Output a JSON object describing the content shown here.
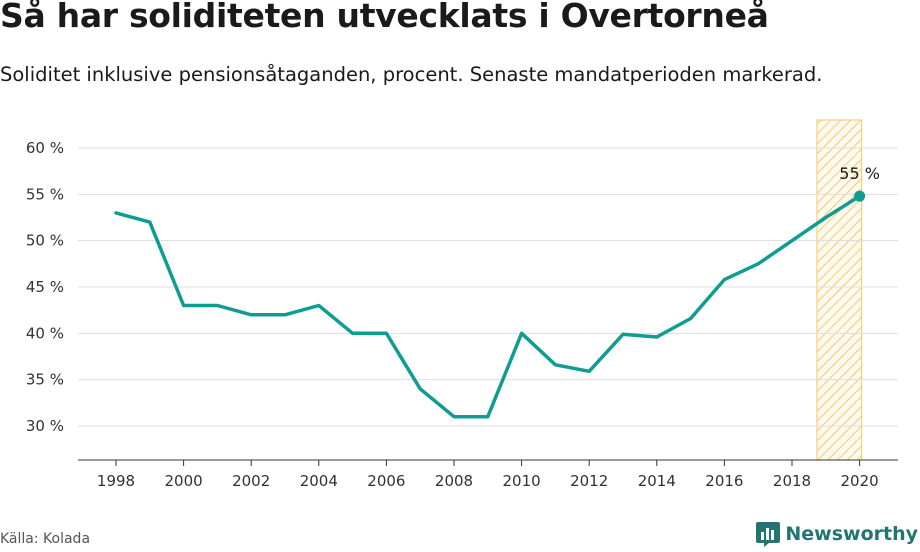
{
  "title": "Så har soliditeten utvecklats i Overtorneå",
  "subtitle": "Soliditet inklusive pensionsåtaganden, procent. Senaste mandatperioden markerad.",
  "source": "Källa: Kolada",
  "brand": "Newsworthy",
  "colors": {
    "line": "#0f9c91",
    "highlight": "#f7c96a",
    "grid": "#dddddd",
    "brand": "#21766f"
  },
  "chart_data": {
    "type": "line",
    "x": [
      1998,
      1999,
      2000,
      2001,
      2002,
      2003,
      2004,
      2005,
      2006,
      2007,
      2008,
      2009,
      2010,
      2011,
      2012,
      2013,
      2014,
      2015,
      2016,
      2017,
      2018,
      2019,
      2020
    ],
    "values": [
      53,
      52,
      43,
      43,
      42,
      42,
      43,
      40,
      40,
      34,
      31,
      31,
      40,
      36.6,
      35.9,
      39.9,
      39.6,
      41.6,
      45.8,
      47.5,
      50,
      52.5,
      54.8
    ],
    "xticks": [
      1998,
      2000,
      2002,
      2004,
      2006,
      2008,
      2010,
      2012,
      2014,
      2016,
      2018,
      2020
    ],
    "xtick_labels": [
      "1998",
      "2000",
      "2002",
      "2004",
      "2006",
      "2008",
      "2010",
      "2012",
      "2014",
      "2016",
      "2018",
      "2020"
    ],
    "yticks": [
      30,
      35,
      40,
      45,
      50,
      55,
      60
    ],
    "ytick_labels": [
      "30 %",
      "35 %",
      "40 %",
      "45 %",
      "50 %",
      "55 %",
      "60 %"
    ],
    "ylim": [
      26,
      63
    ],
    "highlight_range": [
      2018.5,
      2020
    ],
    "end_label": "55 %",
    "xlabel": "",
    "ylabel": ""
  }
}
